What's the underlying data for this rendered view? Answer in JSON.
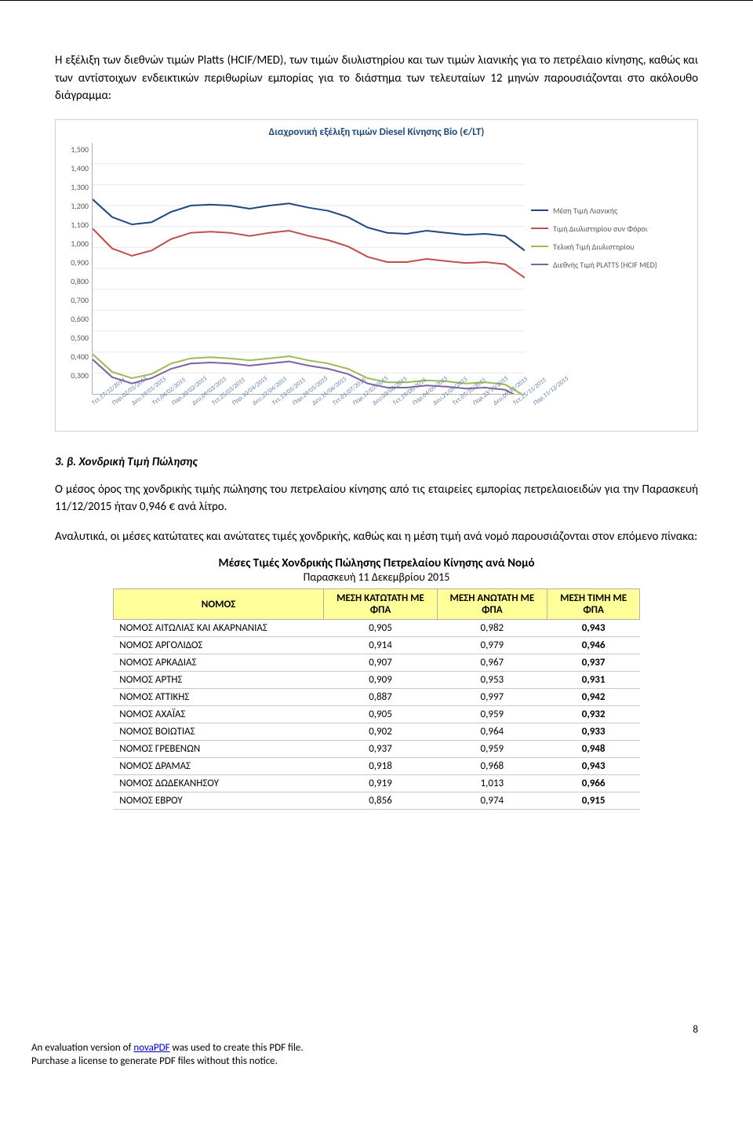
{
  "paragraphs": {
    "intro": "Η εξέλιξη των διεθνών τιμών Platts (HCIF/MED), των τιμών διυλιστηρίου και των τιμών λιανικής για το πετρέλαιο κίνησης, καθώς και των αντίστοιχων ενδεικτικών περιθωρίων εμπορίας για το διάστημα των τελευταίων 12 μηνών παρουσιάζονται στο ακόλουθο διάγραμμα:"
  },
  "chart": {
    "title": "Διαχρονική εξέλιξη τιμών Diesel Κίνησης Bio (€/LT)",
    "ylim": [
      0.3,
      1.5
    ],
    "ytick_step": 0.1,
    "yticks": [
      "1,500",
      "1,400",
      "1,300",
      "1,200",
      "1,100",
      "1,000",
      "0,900",
      "0,800",
      "0,700",
      "0,600",
      "0,500",
      "0,400",
      "0,300"
    ],
    "xlabels": [
      "Τετ,17/12/2014",
      "Παρ,02/01/2015",
      "Δευ,19/01/2015",
      "Τετ,04/02/2015",
      "Παρ,20/02/2015",
      "Δευ,09/03/2015",
      "Τετ,25/03/2015",
      "Παρ,10/04/2015",
      "Δευ,27/04/2015",
      "Τετ,13/05/2015",
      "Παρ,29/05/2015",
      "Δευ,15/06/2015",
      "Τετ,01/07/2015",
      "Παρ,17/07/2015",
      "Δευ,03/08/2015",
      "Τετ,19/08/2015",
      "Παρ,04/09/2015",
      "Δευ,21/09/2015",
      "Τετ,07/10/2015",
      "Παρ,23/10/2015",
      "Δευ,09/11/2015",
      "Τετ,25/11/2015",
      "Παρ,11/12/2015"
    ],
    "series": [
      {
        "name": "Μέση Τιμή Λιανικής",
        "color": "#1f497d",
        "values": [
          1.23,
          1.145,
          1.11,
          1.12,
          1.17,
          1.2,
          1.205,
          1.2,
          1.185,
          1.2,
          1.21,
          1.19,
          1.175,
          1.145,
          1.095,
          1.07,
          1.065,
          1.08,
          1.07,
          1.06,
          1.065,
          1.055,
          0.985
        ]
      },
      {
        "name": "Τιμή Διυλιστηρίου συν Φόροι",
        "color": "#c0504d",
        "values": [
          1.09,
          0.995,
          0.96,
          0.985,
          1.04,
          1.07,
          1.075,
          1.07,
          1.055,
          1.07,
          1.08,
          1.055,
          1.035,
          1.005,
          0.955,
          0.93,
          0.93,
          0.945,
          0.935,
          0.925,
          0.93,
          0.92,
          0.855
        ]
      },
      {
        "name": "Τελική Τιμή Διυλιστηρίου",
        "color": "#9bbb59",
        "values": [
          0.49,
          0.405,
          0.375,
          0.395,
          0.445,
          0.47,
          0.475,
          0.47,
          0.46,
          0.47,
          0.48,
          0.46,
          0.445,
          0.42,
          0.375,
          0.355,
          0.355,
          0.365,
          0.36,
          0.35,
          0.355,
          0.345,
          0.29
        ]
      },
      {
        "name": "Διεθνής Τιμή PLATTS (HCIF MED)",
        "color": "#8064a2",
        "values": [
          0.465,
          0.38,
          0.35,
          0.375,
          0.42,
          0.445,
          0.45,
          0.445,
          0.435,
          0.445,
          0.455,
          0.435,
          0.42,
          0.395,
          0.35,
          0.33,
          0.33,
          0.34,
          0.335,
          0.325,
          0.33,
          0.32,
          0.27
        ]
      }
    ],
    "line_width": 2,
    "grid_color": "#e8e8e8",
    "background_color": "#ffffff",
    "axis_font_size": 10,
    "xlabel_color": "#5b7ba8"
  },
  "section": {
    "heading": "3. β. Χονδρική Τιμή Πώλησης",
    "p1": "Ο μέσος όρος της χονδρικής τιμής πώλησης του πετρελαίου κίνησης από τις εταιρείες εμπορίας πετρελαιοειδών για την Παρασκευή 11/12/2015 ήταν 0,946 € ανά λίτρο.",
    "p2": "Αναλυτικά, οι μέσες κατώτατες και ανώτατες τιμές χονδρικής, καθώς και η μέση τιμή ανά νομό παρουσιάζονται στον επόμενο πίνακα:"
  },
  "table": {
    "title": "Μέσες Τιμές Χονδρικής Πώλησης Πετρελαίου Κίνησης ανά Νομό",
    "subtitle": "Παρασκευή 11 Δεκεμβρίου 2015",
    "headers": {
      "nomos": "ΝΟΜΟΣ",
      "low": "ΜΕΣΗ ΚΑΤΩΤΑΤΗ ΜΕ ΦΠΑ",
      "high": "ΜΕΣΗ ΑΝΩΤΑΤΗ ΜΕ ΦΠΑ",
      "avg": "ΜΕΣΗ ΤΙΜΗ ΜΕ ΦΠΑ"
    },
    "rows": [
      [
        "ΝΟΜΟΣ ΑΙΤΩΛΙΑΣ ΚΑΙ ΑΚΑΡΝΑΝΙΑΣ",
        "0,905",
        "0,982",
        "0,943"
      ],
      [
        "ΝΟΜΟΣ ΑΡΓΟΛΙΔΟΣ",
        "0,914",
        "0,979",
        "0,946"
      ],
      [
        "ΝΟΜΟΣ ΑΡΚΑΔΙΑΣ",
        "0,907",
        "0,967",
        "0,937"
      ],
      [
        "ΝΟΜΟΣ ΑΡΤΗΣ",
        "0,909",
        "0,953",
        "0,931"
      ],
      [
        "ΝΟΜΟΣ ΑΤΤΙΚΗΣ",
        "0,887",
        "0,997",
        "0,942"
      ],
      [
        "ΝΟΜΟΣ ΑΧΑΪΑΣ",
        "0,905",
        "0,959",
        "0,932"
      ],
      [
        "ΝΟΜΟΣ ΒΟΙΩΤΙΑΣ",
        "0,902",
        "0,964",
        "0,933"
      ],
      [
        "ΝΟΜΟΣ ΓΡΕΒΕΝΩΝ",
        "0,937",
        "0,959",
        "0,948"
      ],
      [
        "ΝΟΜΟΣ ΔΡΑΜΑΣ",
        "0,918",
        "0,968",
        "0,943"
      ],
      [
        "ΝΟΜΟΣ ΔΩΔΕΚΑΝΗΣΟΥ",
        "0,919",
        "1,013",
        "0,966"
      ],
      [
        "ΝΟΜΟΣ ΕΒΡΟΥ",
        "0,856",
        "0,974",
        "0,915"
      ]
    ]
  },
  "page_number": "8",
  "footer": {
    "line1_pre": "An evaluation version of ",
    "line1_link": "novaPDF",
    "line1_post": " was used to create this PDF file.",
    "line2": "Purchase a license to generate PDF files without this notice."
  }
}
